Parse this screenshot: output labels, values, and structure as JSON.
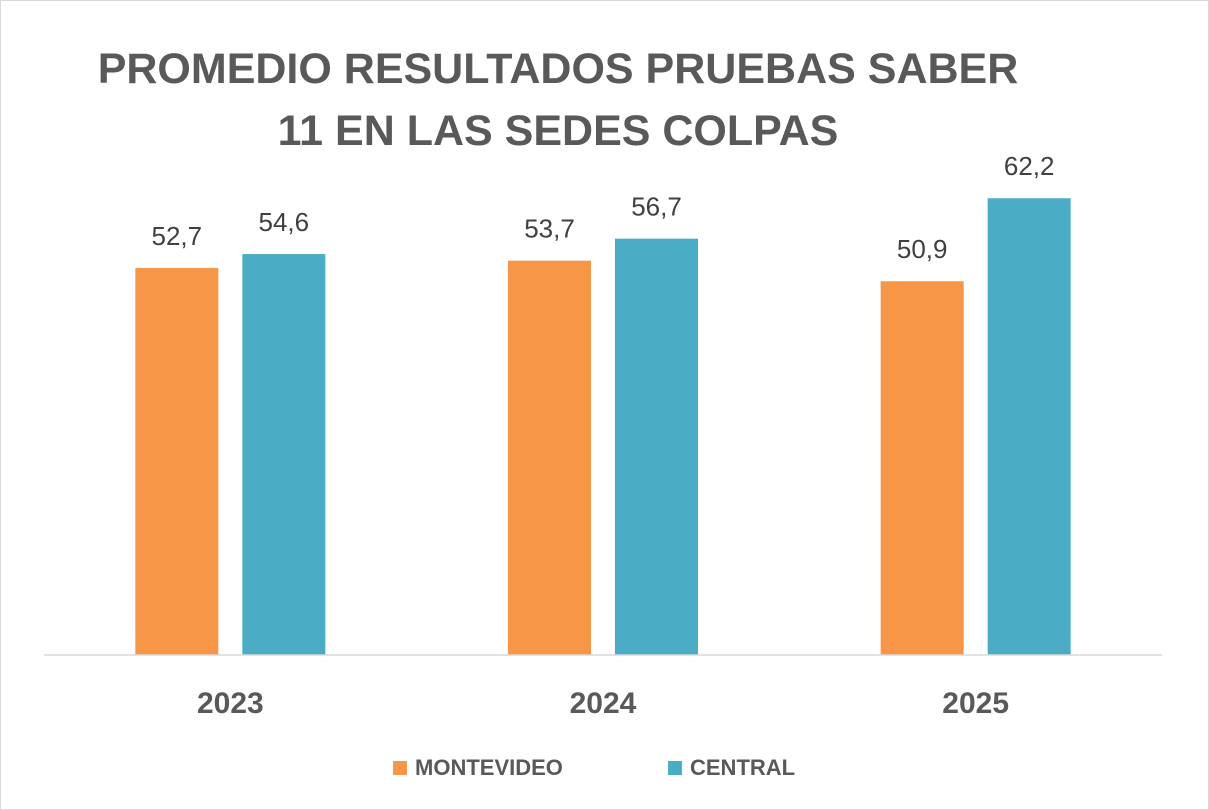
{
  "chart_data": {
    "type": "bar",
    "title": "PROMEDIO RESULTADOS PRUEBAS SABER 11 EN LAS SEDES COLPAS",
    "categories": [
      "2023",
      "2024",
      "2025"
    ],
    "series": [
      {
        "name": "MONTEVIDEO",
        "color": "#f79646",
        "values": [
          52.7,
          53.7,
          50.9
        ],
        "value_labels": [
          "52,7",
          "53,7",
          "50,9"
        ]
      },
      {
        "name": "CENTRAL",
        "color": "#4bacc6",
        "values": [
          54.6,
          56.7,
          62.2
        ],
        "value_labels": [
          "54,6",
          "56,7",
          "62,2"
        ]
      }
    ],
    "ylim": [
      0,
      70
    ],
    "grid": false,
    "legend": "bottom"
  }
}
